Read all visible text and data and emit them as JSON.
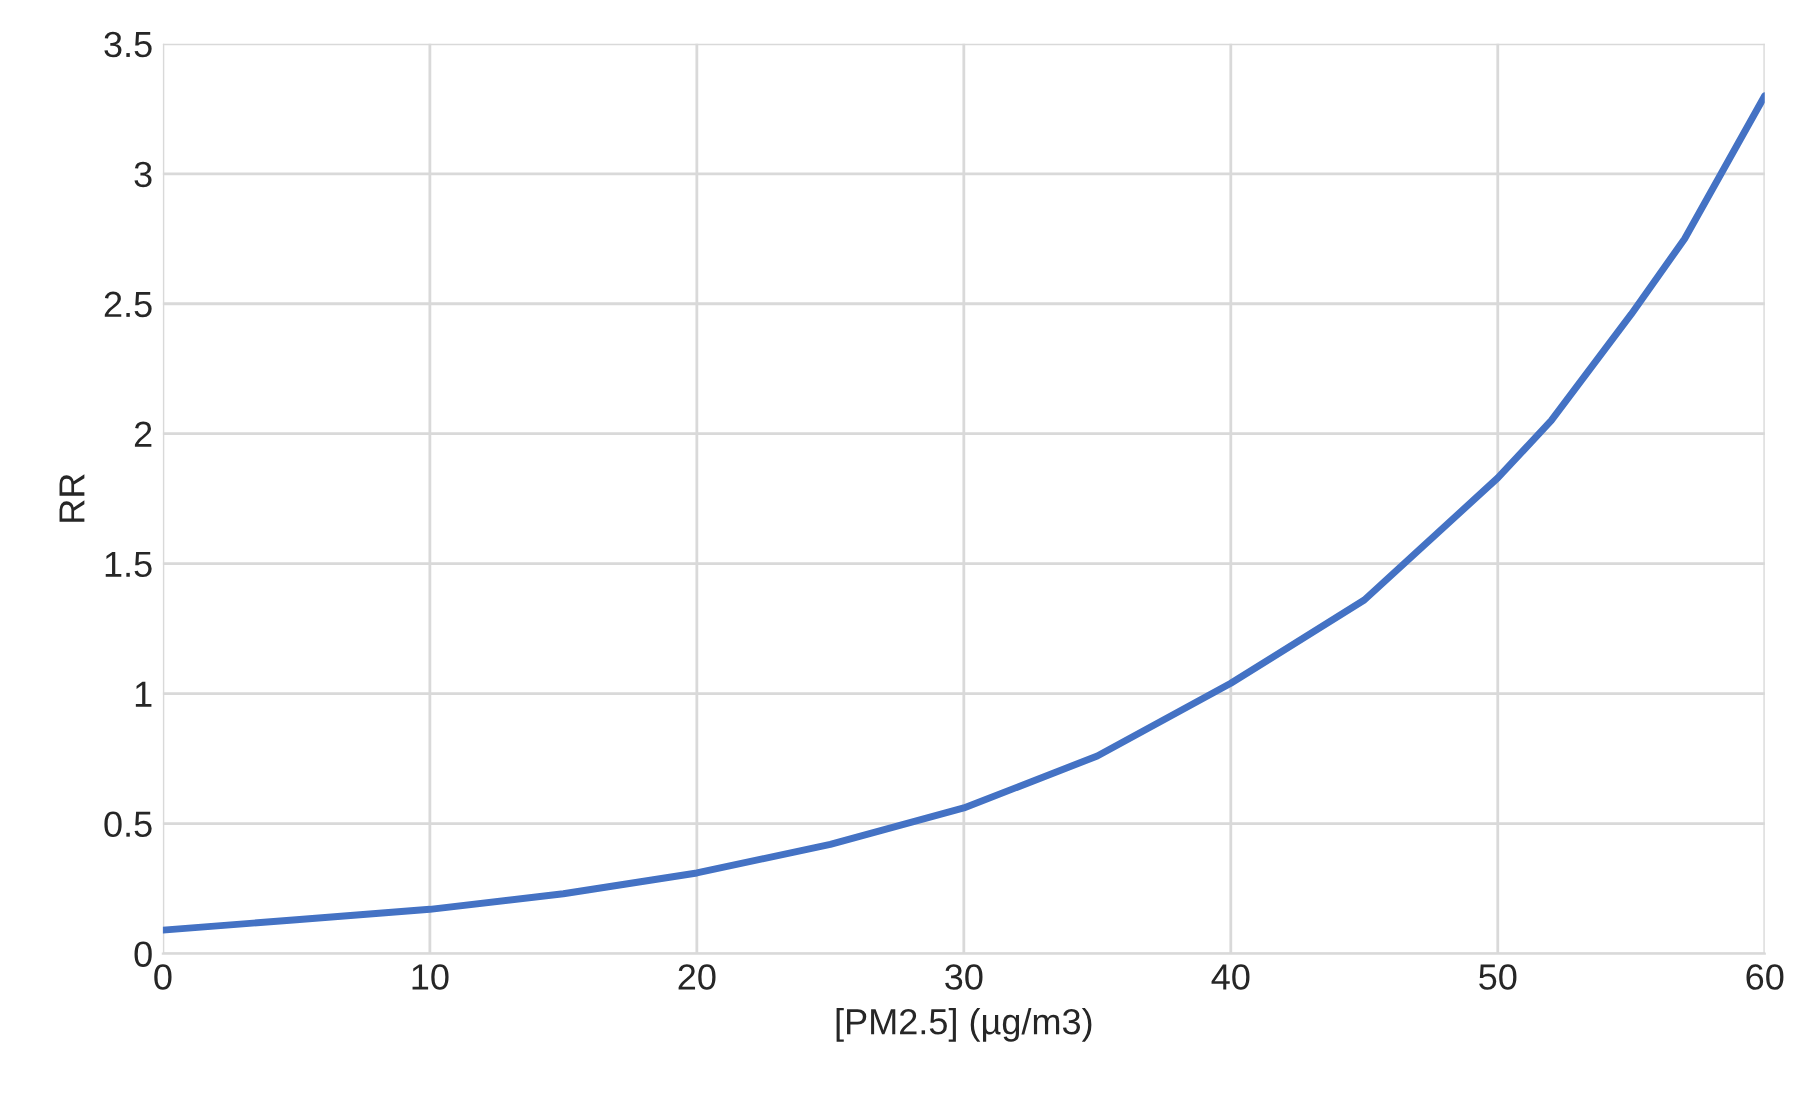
{
  "chart_data": {
    "type": "line",
    "xlabel": "[PM2.5] (µg/m3)",
    "ylabel": "RR",
    "series": [
      {
        "color": "#4472c4",
        "x": [
          0,
          5,
          10,
          15,
          20,
          25,
          30,
          35,
          40,
          45,
          50,
          52,
          55,
          57,
          60
        ],
        "values": [
          0.09,
          0.13,
          0.17,
          0.23,
          0.31,
          0.42,
          0.56,
          0.76,
          1.04,
          1.36,
          1.83,
          2.05,
          2.46,
          2.75,
          3.3
        ]
      }
    ],
    "xlim": [
      0,
      60
    ],
    "xticks": [
      0,
      10,
      20,
      30,
      40,
      50,
      60
    ],
    "ylim": [
      0,
      3.5
    ],
    "yticks": [
      0,
      0.5,
      1,
      1.5,
      2,
      2.5,
      3,
      3.5
    ],
    "grid": true,
    "marker": "none",
    "line_style": "solid"
  }
}
